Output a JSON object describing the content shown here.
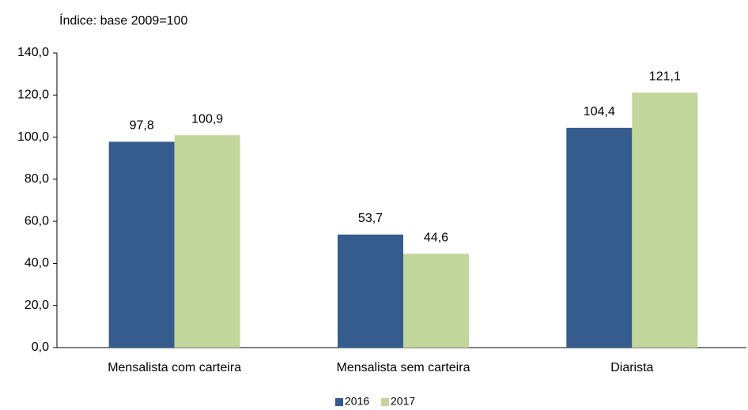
{
  "chart_data": {
    "type": "bar",
    "title": "Índice: base 2009=100",
    "categories": [
      "Mensalista com carteira",
      "Mensalista sem carteira",
      "Diarista"
    ],
    "series": [
      {
        "name": "2016",
        "color": "#355c8c",
        "values": [
          97.8,
          53.7,
          104.4
        ],
        "value_labels": [
          "97,8",
          "53,7",
          "104,4"
        ]
      },
      {
        "name": "2017",
        "color": "#c3d69b",
        "values": [
          100.9,
          44.6,
          121.1
        ],
        "value_labels": [
          "100,9",
          "44,6",
          "121,1"
        ]
      }
    ],
    "ylim": [
      0,
      140
    ],
    "yticks": [
      {
        "value": 0,
        "label": "0,0"
      },
      {
        "value": 20,
        "label": "20,0"
      },
      {
        "value": 40,
        "label": "40,0"
      },
      {
        "value": 60,
        "label": "60,0"
      },
      {
        "value": 80,
        "label": "80,0"
      },
      {
        "value": 100,
        "label": "100,0"
      },
      {
        "value": 120,
        "label": "120,0"
      },
      {
        "value": 140,
        "label": "140,0"
      }
    ],
    "grid": false,
    "legend": "bottom"
  }
}
